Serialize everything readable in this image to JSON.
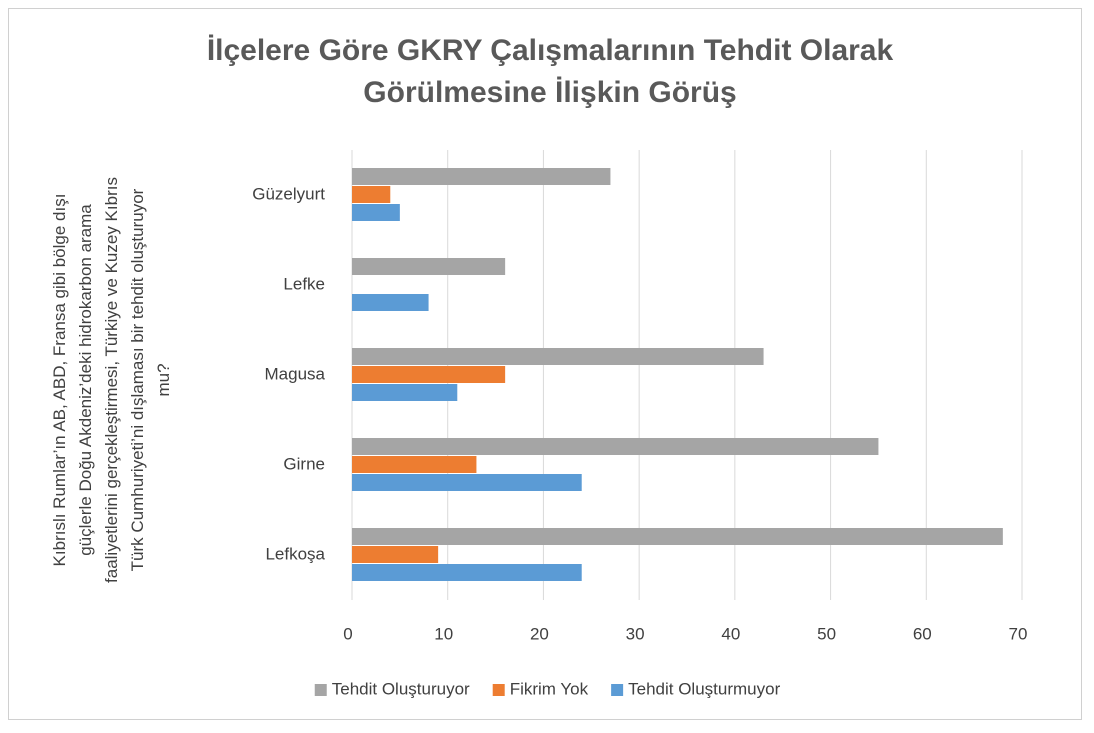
{
  "chart_data": {
    "type": "hbar",
    "title": "İlçelere Göre GKRY Çalışmalarının Tehdit Olarak Görülmesine İlişkin Görüş",
    "y_label": "Kıbrıslı Rumlar’ın AB, ABD, Fransa gibi bölge dışı güçlerle Doğu Akdeniz’deki hidrokarbon arama faaliyetlerini gerçekleştirmesi, Türkiye ve Kuzey Kıbrıs Türk Cumhuriyeti’ni dışlaması bir tehdit oluşturuyor mu?",
    "categories": [
      "Lefkoşa",
      "Girne",
      "Magusa",
      "Lefke",
      "Güzelyurt"
    ],
    "series": [
      {
        "name": "Tehdit Oluşturuyor",
        "color": "#a5a5a5",
        "values": [
          68,
          55,
          43,
          16,
          27
        ]
      },
      {
        "name": "Fikrim Yok",
        "color": "#ed7d31",
        "values": [
          9,
          13,
          16,
          0,
          4
        ]
      },
      {
        "name": "Tehdit Oluşturmuyor",
        "color": "#5b9bd5",
        "values": [
          24,
          24,
          11,
          8,
          5
        ]
      }
    ],
    "xlim": [
      0,
      70
    ],
    "xticks": [
      0,
      10,
      20,
      30,
      40,
      50,
      60,
      70
    ],
    "grid": true,
    "legend": "bottom"
  }
}
